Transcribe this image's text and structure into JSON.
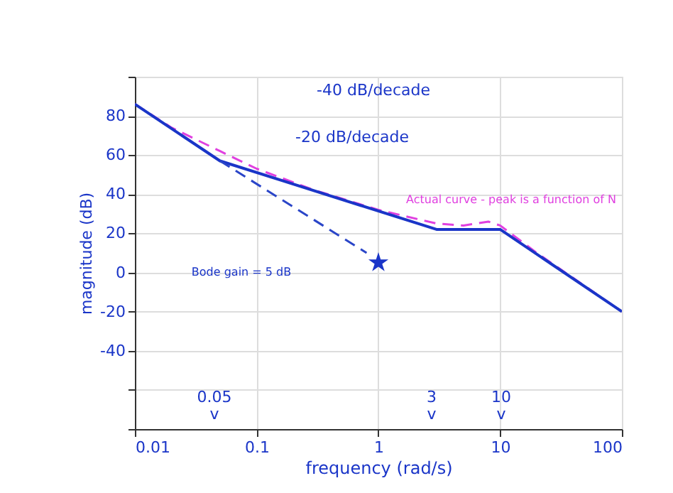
{
  "chart_data": {
    "type": "line",
    "xlabel": "frequency (rad/s)",
    "ylabel": "magnitude (dB)",
    "log": "x",
    "xlim": [
      0.01,
      100
    ],
    "xticks": [
      0.01,
      0.1,
      1,
      10,
      100
    ],
    "ylim": [
      -80,
      100
    ],
    "yticks": [
      {
        "value": -80,
        "label": null
      },
      {
        "value": -60,
        "label": null
      },
      -40,
      -20,
      0,
      20,
      40,
      60,
      80,
      {
        "value": 100,
        "label": null
      }
    ],
    "grid": true,
    "series": [
      {
        "type": "line",
        "color": "#e040e0",
        "line_style": "dashed",
        "x": [
          0.01,
          0.02,
          0.05,
          0.1,
          0.3,
          1,
          3,
          5,
          8,
          10,
          20,
          100
        ],
        "values": [
          86,
          74,
          62,
          53,
          42,
          32,
          25,
          24,
          26,
          24,
          10,
          -20
        ]
      },
      {
        "type": "line",
        "color": "#1a35c8",
        "line_style": "solid",
        "x": [
          0.01,
          0.05,
          3,
          10,
          100
        ],
        "values": [
          86,
          57,
          22,
          22,
          -20
        ]
      },
      {
        "type": "line",
        "color": "#2a45c8",
        "line_style": "dashed",
        "x": [
          0.05,
          0.8
        ],
        "values": [
          57,
          10
        ]
      },
      {
        "type": "scatter",
        "color": "#1a35c8",
        "marker": "star",
        "x": [
          1
        ],
        "values": [
          5
        ]
      }
    ],
    "annotations": [
      "-40 dB/decade",
      "-20 dB/decade",
      "Actual curve - peak is a function of N",
      "Bode gain = 5 dB",
      "0.05",
      "v",
      "3",
      "v",
      "10",
      "v"
    ]
  }
}
